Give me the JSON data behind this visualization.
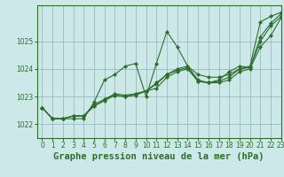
{
  "xlabel": "Graphe pression niveau de la mer (hPa)",
  "ylim": [
    1021.5,
    1026.3
  ],
  "xlim": [
    -0.5,
    23
  ],
  "background_color": "#cce8e8",
  "grid_color": "#99bbbb",
  "line_color": "#2d6e2d",
  "series": [
    [
      1022.6,
      1022.2,
      1022.2,
      1022.2,
      1022.2,
      1022.8,
      1023.6,
      1023.8,
      1024.1,
      1024.2,
      1023.0,
      1024.2,
      1025.35,
      1024.8,
      1024.1,
      1023.8,
      1023.7,
      1023.7,
      1023.8,
      1024.0,
      1024.1,
      1025.7,
      1025.9,
      1026.05
    ],
    [
      1022.6,
      1022.2,
      1022.2,
      1022.3,
      1022.3,
      1022.7,
      1022.9,
      1023.1,
      1023.05,
      1023.1,
      1023.2,
      1023.5,
      1023.8,
      1024.0,
      1024.1,
      1023.6,
      1023.5,
      1023.5,
      1023.6,
      1023.9,
      1024.0,
      1024.8,
      1025.2,
      1025.85
    ],
    [
      1022.6,
      1022.2,
      1022.2,
      1022.3,
      1022.3,
      1022.7,
      1022.9,
      1023.05,
      1023.0,
      1023.1,
      1023.2,
      1023.45,
      1023.8,
      1023.95,
      1024.05,
      1023.55,
      1023.5,
      1023.55,
      1023.7,
      1024.0,
      1024.05,
      1025.15,
      1025.65,
      1026.0
    ],
    [
      1022.6,
      1022.2,
      1022.2,
      1022.3,
      1022.3,
      1022.65,
      1022.85,
      1023.05,
      1023.0,
      1023.05,
      1023.2,
      1023.3,
      1023.7,
      1023.9,
      1024.0,
      1023.55,
      1023.5,
      1023.6,
      1023.9,
      1024.1,
      1024.05,
      1025.0,
      1025.55,
      1025.9
    ]
  ],
  "xticks": [
    0,
    1,
    2,
    3,
    4,
    5,
    6,
    7,
    8,
    9,
    10,
    11,
    12,
    13,
    14,
    15,
    16,
    17,
    18,
    19,
    20,
    21,
    22,
    23
  ],
  "yticks": [
    1022,
    1023,
    1024,
    1025
  ],
  "tick_fontsize": 5.5,
  "xlabel_fontsize": 7.5,
  "xlabel_bold": true,
  "figwidth": 3.2,
  "figheight": 2.0,
  "dpi": 100
}
